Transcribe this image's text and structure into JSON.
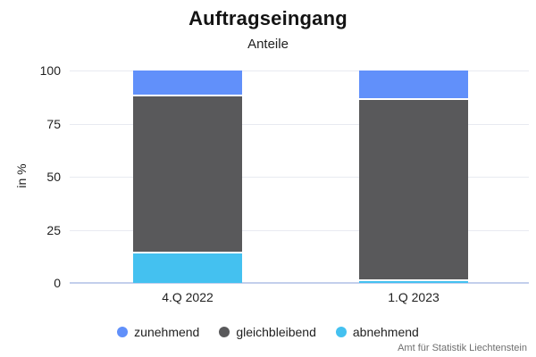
{
  "title": "Auftragseingang",
  "subtitle": "Anteile",
  "source": "Amt für Statistik Liechtenstein",
  "colors": {
    "zunehmend": "#6190fa",
    "gleichbleibend": "#59595b",
    "abnehmend": "#44c1f0",
    "gridline": "#e8eaf1",
    "axis_line": "#c3cfec"
  },
  "chart_data": {
    "type": "bar",
    "subtype": "stacked-percent",
    "title": "Auftragseingang",
    "subtitle": "Anteile",
    "categories": [
      "4.Q 2022",
      "1.Q 2023"
    ],
    "series": [
      {
        "name": "zunehmend",
        "color": "#6190fa",
        "values": [
          12,
          14
        ]
      },
      {
        "name": "gleichbleibend",
        "color": "#59595b",
        "values": [
          74,
          85
        ]
      },
      {
        "name": "abnehmend",
        "color": "#44c1f0",
        "values": [
          14,
          1
        ]
      }
    ],
    "xlabel": "",
    "ylabel": "in %",
    "ylim": [
      0,
      100
    ],
    "yticks": [
      0,
      25,
      50,
      75,
      100
    ],
    "grid": true,
    "legend_position": "bottom"
  }
}
